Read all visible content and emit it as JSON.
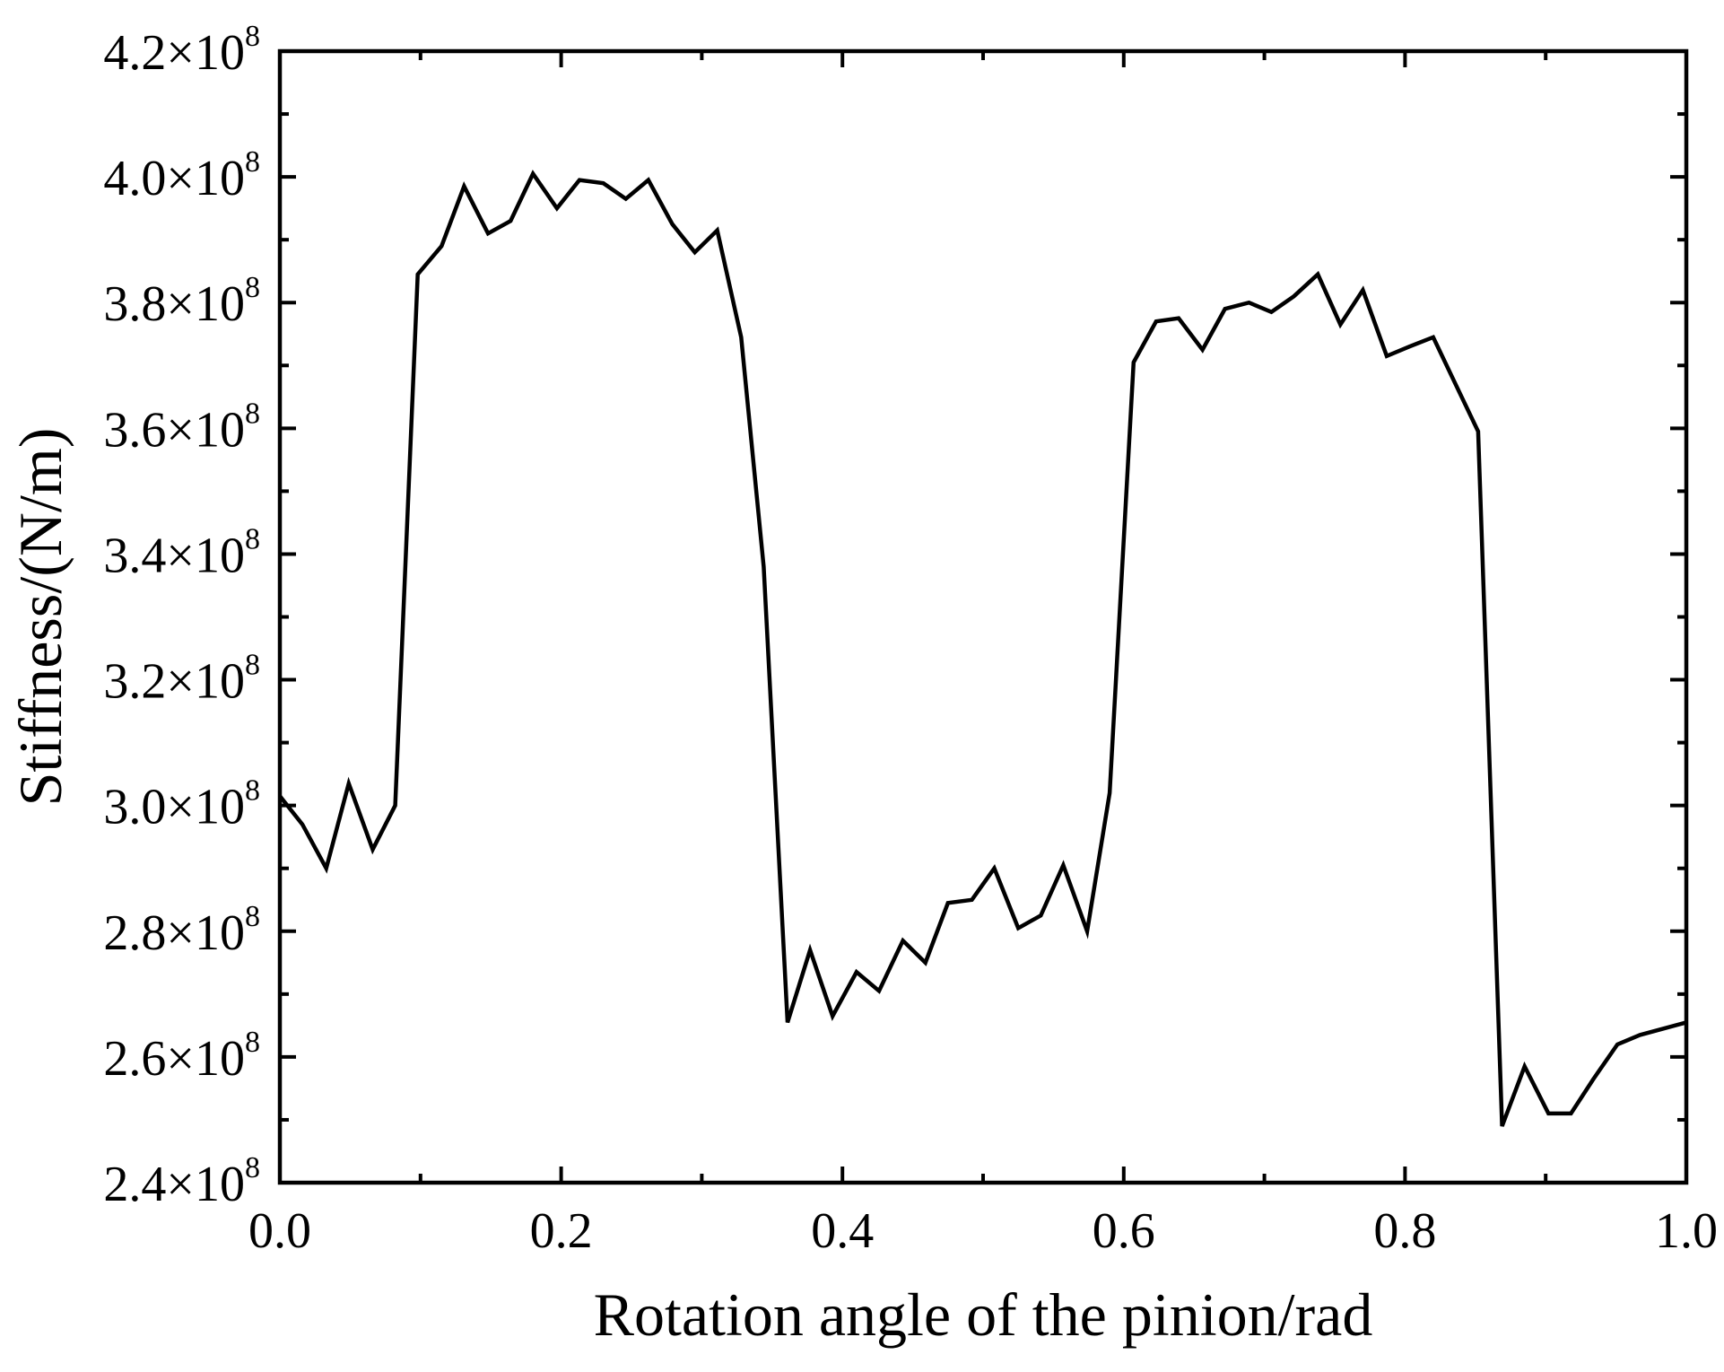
{
  "chart_data": {
    "type": "line",
    "title": "",
    "xlabel": "Rotation angle of the pinion/rad",
    "ylabel": "Stiffness/(N/m)",
    "xlim": [
      0.0,
      1.0
    ],
    "ylim": [
      240000000,
      420000000
    ],
    "x_ticks": [
      0.0,
      0.2,
      0.4,
      0.6,
      0.8,
      1.0
    ],
    "x_tick_labels": [
      "0.0",
      "0.2",
      "0.4",
      "0.6",
      "0.8",
      "1.0"
    ],
    "y_ticks": [
      240000000,
      260000000,
      280000000,
      300000000,
      320000000,
      340000000,
      360000000,
      380000000,
      400000000,
      420000000
    ],
    "y_tick_labels": [
      {
        "mantissa": "2.4×10",
        "exponent": "8"
      },
      {
        "mantissa": "2.6×10",
        "exponent": "8"
      },
      {
        "mantissa": "2.8×10",
        "exponent": "8"
      },
      {
        "mantissa": "3.0×10",
        "exponent": "8"
      },
      {
        "mantissa": "3.2×10",
        "exponent": "8"
      },
      {
        "mantissa": "3.4×10",
        "exponent": "8"
      },
      {
        "mantissa": "3.6×10",
        "exponent": "8"
      },
      {
        "mantissa": "3.8×10",
        "exponent": "8"
      },
      {
        "mantissa": "4.0×10",
        "exponent": "8"
      },
      {
        "mantissa": "4.2×10",
        "exponent": "8"
      }
    ],
    "grid": false,
    "line_color": "#000000",
    "series": [
      {
        "x": [
          0.0,
          0.016,
          0.033,
          0.049,
          0.066,
          0.082,
          0.098,
          0.115,
          0.131,
          0.148,
          0.164,
          0.18,
          0.197,
          0.213,
          0.23,
          0.246,
          0.262,
          0.279,
          0.295,
          0.311,
          0.328,
          0.344,
          0.361,
          0.377,
          0.393,
          0.41,
          0.426,
          0.443,
          0.459,
          0.475,
          0.492,
          0.508,
          0.525,
          0.541,
          0.557,
          0.574,
          0.59,
          0.607,
          0.623,
          0.639,
          0.656,
          0.672,
          0.689,
          0.705,
          0.721,
          0.738,
          0.754,
          0.77,
          0.787,
          0.803,
          0.82,
          0.836,
          0.852,
          0.869,
          0.885,
          0.902,
          0.918,
          0.934,
          0.951,
          0.967,
          1.0
        ],
        "y": [
          301500000,
          297000000,
          290000000,
          303500000,
          293000000,
          300000000,
          384500000,
          389000000,
          398500000,
          391000000,
          393000000,
          400500000,
          395000000,
          399500000,
          399000000,
          396500000,
          399500000,
          392500000,
          388000000,
          391500000,
          374500000,
          338000000,
          265500000,
          277000000,
          266500000,
          273500000,
          270500000,
          278500000,
          275000000,
          284500000,
          285000000,
          290000000,
          280500000,
          282500000,
          290500000,
          280000000,
          302000000,
          370500000,
          377000000,
          377500000,
          372500000,
          379000000,
          380000000,
          378500000,
          381000000,
          384500000,
          376500000,
          382000000,
          371500000,
          373000000,
          374500000,
          367000000,
          359500000,
          249000000,
          258500000,
          251000000,
          251000000,
          256500000,
          262000000,
          263500000,
          265500000
        ]
      }
    ]
  }
}
